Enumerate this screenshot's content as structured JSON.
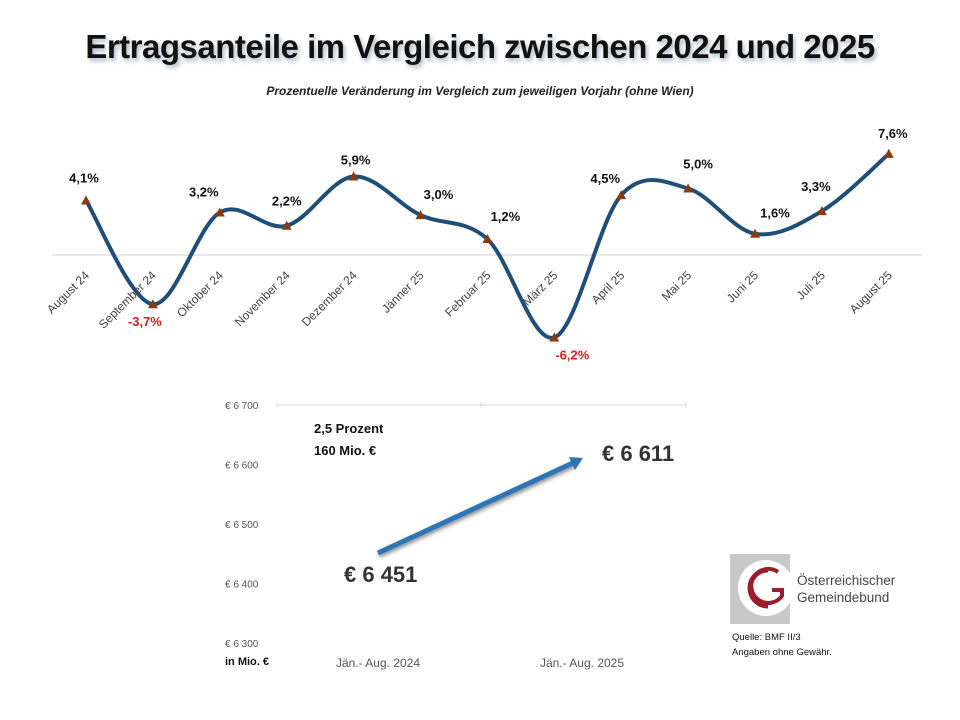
{
  "title": "Ertragsanteile im Vergleich zwischen 2024 und 2025",
  "subtitle": "Prozentuelle Veränderung im Vergleich zum jeweiligen Vorjahr (ohne Wien)",
  "chart_data": [
    {
      "type": "line",
      "title": "Prozentuelle Veränderung im Vergleich zum jeweiligen Vorjahr (ohne Wien)",
      "categories": [
        "August 24",
        "September 24",
        "Oktober 24",
        "November 24",
        "Dezember 24",
        "Jänner 25",
        "Februar 25",
        "März 25",
        "April 25",
        "Mai 25",
        "Juni 25",
        "Juli 25",
        "August 25"
      ],
      "series": [
        {
          "name": "Veränderung",
          "values": [
            4.1,
            -3.7,
            3.2,
            2.2,
            5.9,
            3.0,
            1.2,
            -6.2,
            4.5,
            5.0,
            1.6,
            3.3,
            7.6
          ]
        }
      ],
      "data_labels": [
        "4,1%",
        "-3,7%",
        "3,2%",
        "2,2%",
        "5,9%",
        "3,0%",
        "1,2%",
        "-6,2%",
        "4,5%",
        "5,0%",
        "1,6%",
        "3,3%",
        "7,6%"
      ],
      "ylim": [
        -7,
        9
      ],
      "colors": {
        "line": "#1f4e79",
        "marker": "#8b3a0e",
        "negative_label": "#d42020",
        "positive_label": "#111111",
        "zero_line": "#d0d0d0"
      }
    },
    {
      "type": "line",
      "categories": [
        "Jän.- Aug. 2024",
        "Jän.- Aug. 2025"
      ],
      "series": [
        {
          "name": "Ertragsanteile in Mio. €",
          "values": [
            6451,
            6611
          ]
        }
      ],
      "data_labels": [
        "€ 6 451",
        "€ 6 611"
      ],
      "ylabel": "in Mio. €",
      "yticks": [
        "€ 6 700",
        "€ 6 600",
        "€ 6 500",
        "€ 6 400",
        "€ 6 300"
      ],
      "ylim": [
        6300,
        6700
      ],
      "annotation": [
        "2,5 Prozent",
        "160 Mio. €"
      ],
      "colors": {
        "arrow": "#2e75b6",
        "grid": "#d9d9d9"
      }
    }
  ],
  "logo": {
    "line1": "Österreichischer",
    "line2": "Gemeindebund",
    "color": "#9b1c2a"
  },
  "source": {
    "line1": "Quelle: BMF II/3",
    "line2": "Angaben ohne Gewähr."
  }
}
